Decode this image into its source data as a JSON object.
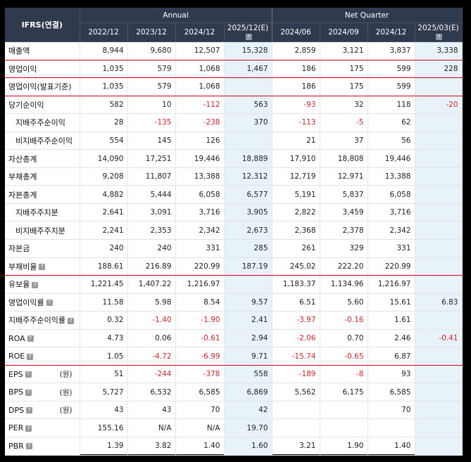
{
  "header": {
    "corner": "IFRS(연결)",
    "annual_label": "Annual",
    "quarter_label": "Net Quarter",
    "annual_periods": [
      "2022/12",
      "2023/12",
      "2024/12",
      "2025/12(E)"
    ],
    "quarter_periods": [
      "2024/06",
      "2024/09",
      "2024/12",
      "2025/03(E)"
    ],
    "help_glyph": "?"
  },
  "rows": [
    {
      "label": "매출액",
      "sub": false,
      "help": false,
      "unit": "",
      "hl": true,
      "values": [
        "8,944",
        "9,680",
        "12,507",
        "15,328",
        "2,859",
        "3,121",
        "3,837",
        "3,338"
      ]
    },
    {
      "label": "영업이익",
      "sub": false,
      "help": false,
      "unit": "",
      "hl": true,
      "values": [
        "1,035",
        "579",
        "1,068",
        "1,467",
        "186",
        "175",
        "599",
        "228"
      ]
    },
    {
      "label": "영업이익(발표기준)",
      "sub": false,
      "help": false,
      "unit": "",
      "hl": true,
      "values": [
        "1,035",
        "579",
        "1,068",
        "",
        "186",
        "175",
        "599",
        ""
      ]
    },
    {
      "label": "당기순이익",
      "sub": false,
      "help": false,
      "unit": "",
      "hl": false,
      "values": [
        "582",
        "10",
        "-112",
        "563",
        "-93",
        "32",
        "118",
        "-20"
      ]
    },
    {
      "label": "지배주주순이익",
      "sub": true,
      "help": false,
      "unit": "",
      "hl": false,
      "values": [
        "28",
        "-135",
        "-238",
        "370",
        "-113",
        "-5",
        "62",
        ""
      ]
    },
    {
      "label": "비지배주주순이익",
      "sub": true,
      "help": false,
      "unit": "",
      "hl": false,
      "values": [
        "554",
        "145",
        "126",
        "",
        "21",
        "37",
        "56",
        ""
      ]
    },
    {
      "label": "자산총계",
      "sub": false,
      "help": false,
      "unit": "",
      "hl": false,
      "values": [
        "14,090",
        "17,251",
        "19,446",
        "18,889",
        "17,910",
        "18,808",
        "19,446",
        ""
      ]
    },
    {
      "label": "부채총계",
      "sub": false,
      "help": false,
      "unit": "",
      "hl": false,
      "values": [
        "9,208",
        "11,807",
        "13,388",
        "12,312",
        "12,719",
        "12,971",
        "13,388",
        ""
      ]
    },
    {
      "label": "자본총계",
      "sub": false,
      "help": false,
      "unit": "",
      "hl": false,
      "values": [
        "4,882",
        "5,444",
        "6,058",
        "6,577",
        "5,191",
        "5,837",
        "6,058",
        ""
      ]
    },
    {
      "label": "지배주주지분",
      "sub": true,
      "help": false,
      "unit": "",
      "hl": false,
      "values": [
        "2,641",
        "3,091",
        "3,716",
        "3,905",
        "2,822",
        "3,459",
        "3,716",
        ""
      ]
    },
    {
      "label": "비지배주주지분",
      "sub": true,
      "help": false,
      "unit": "",
      "hl": false,
      "values": [
        "2,241",
        "2,353",
        "2,342",
        "2,673",
        "2,368",
        "2,378",
        "2,342",
        ""
      ]
    },
    {
      "label": "자본금",
      "sub": false,
      "help": false,
      "unit": "",
      "hl": false,
      "values": [
        "240",
        "240",
        "331",
        "285",
        "261",
        "329",
        "331",
        ""
      ]
    },
    {
      "label": "부채비율",
      "sub": false,
      "help": true,
      "unit": "",
      "hl": true,
      "values": [
        "188.61",
        "216.89",
        "220.99",
        "187.19",
        "245.02",
        "222.20",
        "220.99",
        ""
      ]
    },
    {
      "label": "유보율",
      "sub": false,
      "help": true,
      "unit": "",
      "hl": false,
      "values": [
        "1,221.45",
        "1,407.22",
        "1,216.97",
        "",
        "1,183.37",
        "1,134.96",
        "1,216.97",
        ""
      ]
    },
    {
      "label": "영업이익률",
      "sub": false,
      "help": true,
      "unit": "",
      "hl": false,
      "values": [
        "11.58",
        "5.98",
        "8.54",
        "9.57",
        "6.51",
        "5.60",
        "15.61",
        "6.83"
      ]
    },
    {
      "label": "지배주주순이익률",
      "sub": false,
      "help": true,
      "unit": "",
      "hl": false,
      "values": [
        "0.32",
        "-1.40",
        "-1.90",
        "2.41",
        "-3.97",
        "-0.16",
        "1.61",
        ""
      ]
    },
    {
      "label": "ROA",
      "sub": false,
      "help": true,
      "unit": "",
      "hl": false,
      "values": [
        "4.73",
        "0.06",
        "-0.61",
        "2.94",
        "-2.06",
        "0.70",
        "2.46",
        "-0.41"
      ]
    },
    {
      "label": "ROE",
      "sub": false,
      "help": true,
      "unit": "",
      "hl": true,
      "values": [
        "1.05",
        "-4.72",
        "-6.99",
        "9.71",
        "-15.74",
        "-0.65",
        "6.87",
        ""
      ]
    },
    {
      "label": "EPS",
      "sub": false,
      "help": true,
      "unit": "(원)",
      "hl": false,
      "values": [
        "51",
        "-244",
        "-378",
        "558",
        "-189",
        "-8",
        "93",
        ""
      ]
    },
    {
      "label": "BPS",
      "sub": false,
      "help": true,
      "unit": "(원)",
      "hl": false,
      "values": [
        "5,727",
        "6,532",
        "6,585",
        "6,869",
        "5,562",
        "6,175",
        "6,585",
        ""
      ]
    },
    {
      "label": "DPS",
      "sub": false,
      "help": true,
      "unit": "(원)",
      "hl": false,
      "values": [
        "43",
        "43",
        "70",
        "42",
        "",
        "",
        "70",
        ""
      ]
    },
    {
      "label": "PER",
      "sub": false,
      "help": true,
      "unit": "",
      "hl": false,
      "values": [
        "155.16",
        "N/A",
        "N/A",
        "19.70",
        "",
        "",
        "",
        ""
      ]
    },
    {
      "label": "PBR",
      "sub": false,
      "help": true,
      "unit": "",
      "hl": false,
      "values": [
        "1.39",
        "3.82",
        "1.40",
        "1.60",
        "3.21",
        "1.90",
        "1.40",
        ""
      ]
    }
  ]
}
